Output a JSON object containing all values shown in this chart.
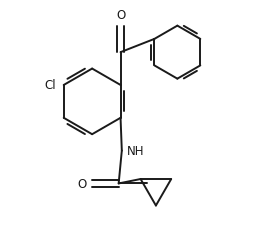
{
  "background": "#ffffff",
  "line_color": "#1a1a1a",
  "line_width": 1.4,
  "font_size": 8.5,
  "figsize": [
    2.6,
    2.3
  ],
  "dpi": 100,
  "xlim": [
    -1.0,
    2.2
  ],
  "ylim": [
    -2.0,
    1.6
  ]
}
